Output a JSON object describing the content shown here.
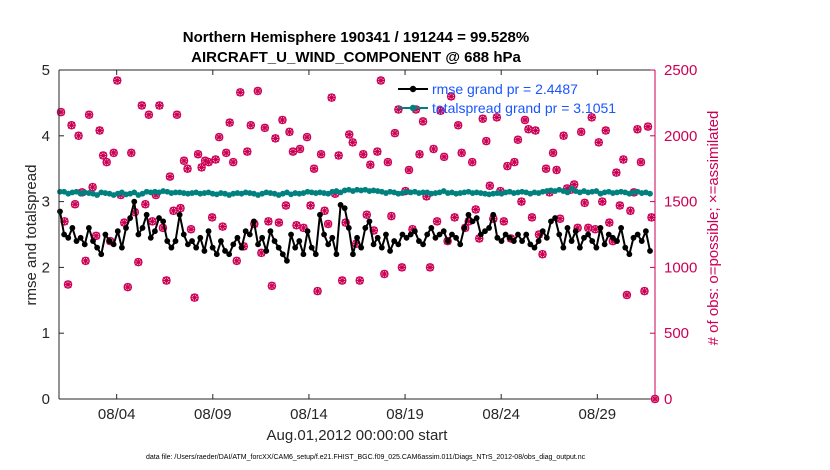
{
  "chart_data": {
    "type": "line",
    "title": "Northern Hemisphere 190341 / 191244 = 99.528%",
    "subtitle": "AIRCRAFT_U_WIND_COMPONENT @ 688 hPa",
    "xlabel": "Aug.01,2012 00:00:00 start",
    "ylabel_left": "rmse and totalspread",
    "ylabel_right": "# of obs: o=possible; ×=assimilated",
    "footer": "data file: /Users/raeder/DAI/ATM_forcXX/CAM6_setup/f.e21.FHIST_BGC.f09_025.CAM6assim.011/Diags_NTrS_2012-08/obs_diag_output.nc",
    "x_ticks": [
      {
        "day": 4,
        "label": "08/04"
      },
      {
        "day": 9,
        "label": "08/09"
      },
      {
        "day": 14,
        "label": "08/14"
      },
      {
        "day": 19,
        "label": "08/19"
      },
      {
        "day": 24,
        "label": "08/24"
      },
      {
        "day": 29,
        "label": "08/29"
      }
    ],
    "y_left_ticks": [
      "0",
      "1",
      "2",
      "3",
      "4",
      "5"
    ],
    "y_right_ticks": [
      "0",
      "500",
      "1000",
      "1500",
      "2000",
      "2500"
    ],
    "xlim": [
      1,
      31
    ],
    "ylim_left": [
      0,
      5
    ],
    "ylim_right": [
      0,
      2500
    ],
    "colors": {
      "rmse": "#000000",
      "spread": "#00807f",
      "obs": "#cc0055",
      "legend_text": "#1a55ff",
      "right_axis": "#cc0055"
    },
    "series": [
      {
        "name": "rmse",
        "legend": "rmse grand pr = 2.4487",
        "values": [
          2.85,
          2.5,
          2.45,
          2.6,
          2.4,
          2.45,
          2.35,
          2.6,
          2.4,
          2.3,
          2.2,
          2.5,
          2.4,
          2.35,
          2.55,
          2.3,
          2.6,
          2.75,
          3.0,
          2.5,
          2.6,
          2.8,
          2.45,
          2.55,
          2.75,
          2.7,
          2.4,
          2.3,
          2.4,
          2.8,
          2.5,
          2.35,
          2.4,
          2.3,
          2.45,
          2.25,
          2.55,
          2.3,
          2.2,
          2.4,
          2.25,
          2.2,
          2.35,
          2.45,
          2.3,
          2.55,
          2.5,
          2.7,
          2.35,
          2.45,
          2.25,
          2.55,
          2.4,
          2.3,
          2.2,
          2.1,
          2.5,
          2.3,
          2.4,
          2.2,
          2.55,
          2.3,
          2.2,
          2.8,
          2.5,
          2.35,
          2.45,
          2.2,
          2.95,
          2.9,
          2.6,
          2.2,
          2.45,
          2.3,
          2.6,
          2.7,
          2.35,
          2.45,
          2.3,
          2.5,
          2.25,
          2.4,
          2.35,
          2.5,
          2.45,
          2.5,
          2.55,
          2.4,
          2.35,
          2.5,
          2.6,
          2.45,
          2.5,
          2.55,
          2.4,
          2.5,
          2.45,
          2.35,
          2.6,
          2.8,
          2.7,
          2.75,
          2.5,
          2.55,
          2.6,
          2.8,
          2.45,
          2.4,
          2.5,
          2.45,
          2.4,
          2.5,
          2.4,
          2.5,
          2.35,
          2.3,
          2.4,
          2.55,
          2.45,
          2.7,
          2.75,
          2.5,
          2.3,
          2.6,
          2.4,
          2.55,
          2.3,
          2.45,
          2.5,
          2.4,
          2.3,
          2.6,
          2.35,
          2.5,
          2.45,
          2.4,
          2.6,
          2.3,
          2.2,
          2.45,
          2.5,
          2.4,
          2.55,
          2.25
        ]
      },
      {
        "name": "totalspread",
        "legend": "totalspread grand pr = 3.1051",
        "values": [
          3.15,
          3.15,
          3.12,
          3.14,
          3.15,
          3.12,
          3.14,
          3.13,
          3.12,
          3.1,
          3.14,
          3.13,
          3.12,
          3.1,
          3.12,
          3.14,
          3.11,
          3.12,
          3.14,
          3.1,
          3.12,
          3.15,
          3.14,
          3.15,
          3.14,
          3.16,
          3.15,
          3.13,
          3.14,
          3.14,
          3.13,
          3.12,
          3.13,
          3.14,
          3.12,
          3.13,
          3.14,
          3.12,
          3.11,
          3.13,
          3.12,
          3.1,
          3.12,
          3.13,
          3.12,
          3.14,
          3.13,
          3.12,
          3.1,
          3.12,
          3.14,
          3.13,
          3.12,
          3.1,
          3.12,
          3.14,
          3.11,
          3.13,
          3.12,
          3.13,
          3.15,
          3.14,
          3.13,
          3.14,
          3.13,
          3.12,
          3.15,
          3.16,
          3.14,
          3.17,
          3.18,
          3.16,
          3.18,
          3.17,
          3.18,
          3.16,
          3.17,
          3.16,
          3.15,
          3.13,
          3.15,
          3.14,
          3.12,
          3.13,
          3.15,
          3.14,
          3.15,
          3.13,
          3.14,
          3.14,
          3.12,
          3.13,
          3.14,
          3.16,
          3.13,
          3.14,
          3.12,
          3.13,
          3.14,
          3.15,
          3.13,
          3.14,
          3.13,
          3.12,
          3.11,
          3.12,
          3.13,
          3.12,
          3.14,
          3.15,
          3.13,
          3.14,
          3.15,
          3.14,
          3.12,
          3.14,
          3.13,
          3.15,
          3.16,
          3.17,
          3.16,
          3.18,
          3.16,
          3.14,
          3.2,
          3.16,
          3.14,
          3.16,
          3.14,
          3.15,
          3.16,
          3.12,
          3.14,
          3.15,
          3.13,
          3.14,
          3.15,
          3.14,
          3.12,
          3.14,
          3.15,
          3.13,
          3.14,
          3.12
        ]
      },
      {
        "name": "obs possible / assimilated (6-hourly)",
        "values": [
          2180,
          1350,
          870,
          2080,
          1480,
          2000,
          1570,
          1050,
          2160,
          1610,
          1240,
          2040,
          1850,
          1800,
          1200,
          1870,
          2420,
          1550,
          1340,
          850,
          1870,
          1420,
          1040,
          2230,
          1480,
          2160,
          1350,
          1550,
          2230,
          1300,
          900,
          1690,
          1430,
          2160,
          1450,
          1810,
          1750,
          1290,
          770,
          1860,
          1760,
          1810,
          1800,
          1380,
          1820,
          1990,
          1310,
          1870,
          2100,
          1800,
          1050,
          2330,
          1160,
          1880,
          2080,
          1330,
          2340,
          1110,
          2060,
          1350,
          860,
          1980,
          1340,
          2120,
          1470,
          2030,
          1880,
          1320,
          1900,
          1300,
          1990,
          1470,
          1750,
          820,
          1860,
          1430,
          1330,
          2290,
          1560,
          1850,
          900,
          1340,
          2010,
          1950,
          1180,
          900,
          1860,
          1400,
          1780,
          1280,
          1880,
          2420,
          950,
          1800,
          1390,
          2020,
          2200,
          1000,
          1580,
          1740,
          1290,
          2200,
          1860,
          2110,
          1540,
          1000,
          1900,
          1350,
          2190,
          1840,
          1200,
          2300,
          1380,
          2080,
          1870,
          1300,
          1350,
          1800,
          1440,
          1220,
          2130,
          1960,
          1620,
          1370,
          2140,
          1580,
          1350,
          1770,
          1220,
          1800,
          1970,
          1500,
          2120,
          2050,
          1380,
          2040,
          1250,
          1100,
          1750,
          1570,
          1870,
          1740,
          1370,
          2000,
          1600,
          1590,
          1630,
          1300,
          2030,
          1490,
          1300,
          2140,
          1290,
          1950,
          1500,
          2040,
          1340,
          1200,
          1720,
          1470,
          1820,
          790,
          1430,
          1570,
          2050,
          1800,
          820,
          2070,
          1380,
          0
        ]
      }
    ]
  }
}
